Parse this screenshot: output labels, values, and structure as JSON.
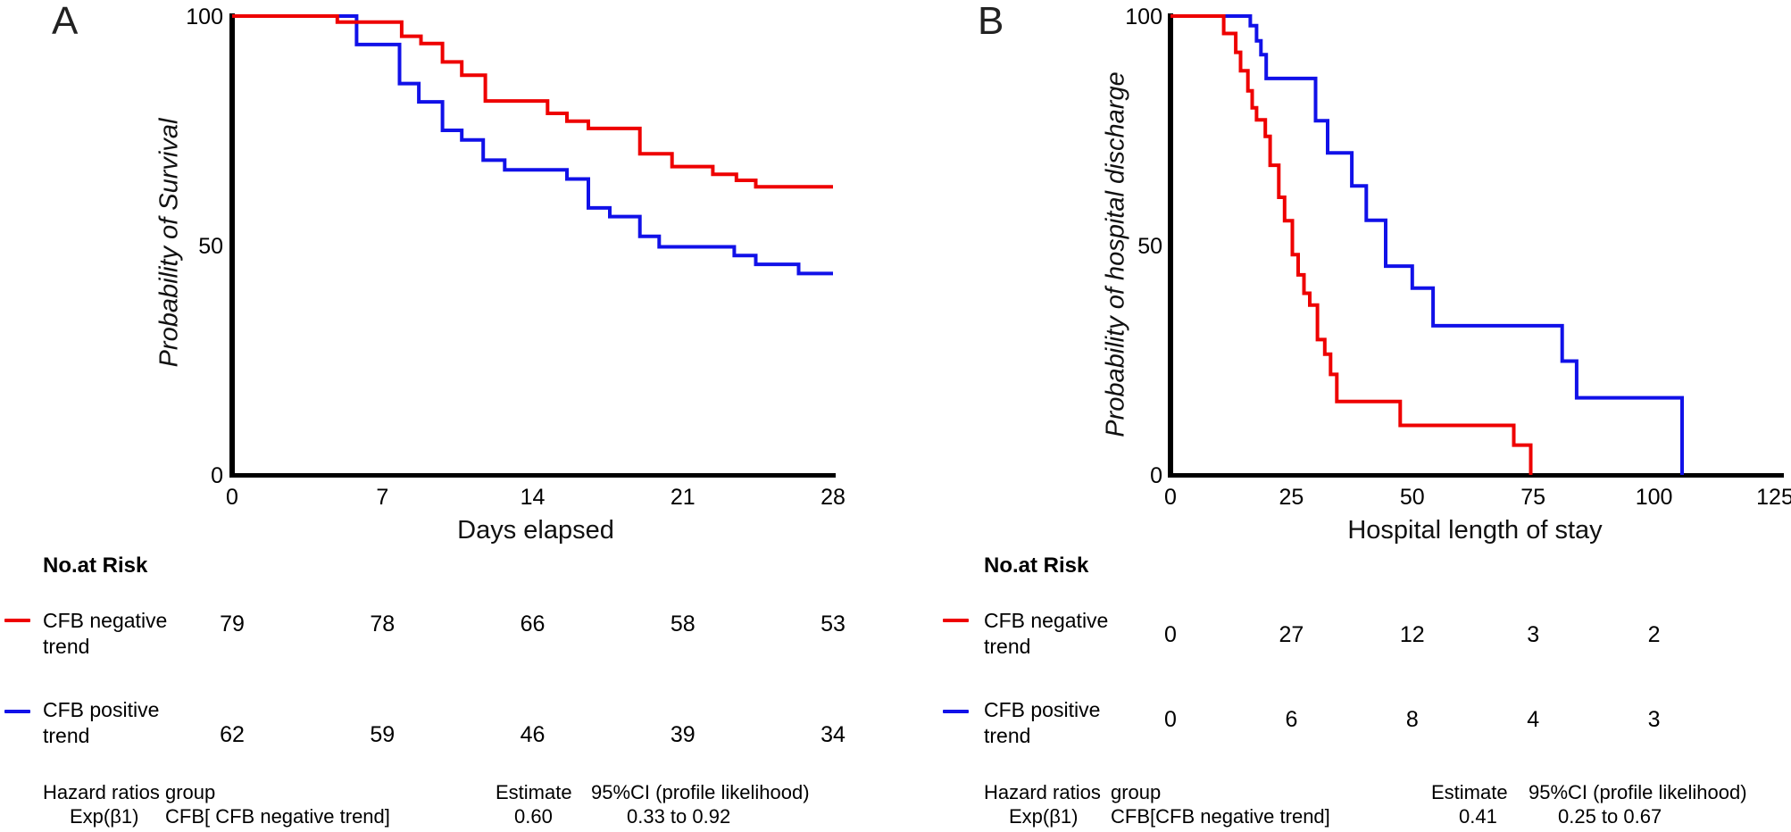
{
  "colors": {
    "red": "#ee0000",
    "blue": "#1111e8",
    "axis": "#000000"
  },
  "panel_a": {
    "letter": "A",
    "ylabel": "Probability of Survival",
    "xlabel": "Days elapsed"
  },
  "panel_b": {
    "letter": "B",
    "ylabel": "Probability of hospital discharge",
    "xlabel": "Hospital length of stay"
  },
  "risk_table_a": {
    "title": "No.at Risk",
    "rows": [
      {
        "label_line1": "CFB negative",
        "label_line2": "trend",
        "color": "red",
        "values": [
          "79",
          "78",
          "66",
          "58",
          "53"
        ]
      },
      {
        "label_line1": "CFB positive",
        "label_line2": "trend",
        "color": "blue",
        "values": [
          "62",
          "59",
          "46",
          "39",
          "34"
        ]
      }
    ]
  },
  "risk_table_b": {
    "title": "No.at Risk",
    "rows": [
      {
        "label_line1": "CFB negative",
        "label_line2": "trend",
        "color": "red",
        "values": [
          "0",
          "27",
          "12",
          "3",
          "2"
        ]
      },
      {
        "label_line1": "CFB positive",
        "label_line2": "trend",
        "color": "blue",
        "values": [
          "0",
          "6",
          "8",
          "4",
          "3"
        ]
      }
    ]
  },
  "hazard_a": {
    "header_col1": "Hazard ratios",
    "header_col2": "group",
    "header_col3": "Estimate",
    "header_col4": "95%CI (profile likelihood)",
    "value_col1": "Exp(β1)",
    "value_col2": "CFB[ CFB negative trend]",
    "value_col3": "0.60",
    "value_col4": "0.33 to 0.92"
  },
  "hazard_b": {
    "header_col1": "Hazard ratios",
    "header_col2": "group",
    "header_col3": "Estimate",
    "header_col4": "95%CI (profile likelihood)",
    "value_col1": "Exp(β1)",
    "value_col2": "CFB[CFB negative trend]",
    "value_col3": "0.41",
    "value_col4": "0.25 to 0.67"
  },
  "chart_data": [
    {
      "id": "A",
      "type": "line",
      "subtype": "kaplan-meier-step",
      "panel_label": "A",
      "title": "",
      "xlabel": "Days elapsed",
      "ylabel": "Probability of Survival",
      "xlim": [
        0,
        28
      ],
      "ylim": [
        0,
        100
      ],
      "xticks": [
        "0",
        "7",
        "14",
        "21",
        "28"
      ],
      "xtick_values": [
        0,
        7,
        14,
        21,
        28
      ],
      "yticks": [
        "0",
        "50",
        "100"
      ],
      "ytick_values": [
        0,
        50,
        100
      ],
      "grid": false,
      "legend_position": "below-as-risk-table",
      "series": [
        {
          "name": "CFB negative trend",
          "color": "#ee0000",
          "end_x": 28,
          "points": [
            [
              0,
              100
            ],
            [
              4.9,
              98.7
            ],
            [
              7.9,
              95.6
            ],
            [
              8.8,
              94.0
            ],
            [
              9.8,
              90.0
            ],
            [
              10.7,
              87.1
            ],
            [
              11.8,
              81.5
            ],
            [
              14.7,
              78.8
            ],
            [
              15.6,
              77.1
            ],
            [
              16.6,
              75.5
            ],
            [
              19.0,
              70.0
            ],
            [
              20.5,
              67.2
            ],
            [
              22.4,
              65.5
            ],
            [
              23.5,
              64.2
            ],
            [
              24.4,
              62.8
            ]
          ]
        },
        {
          "name": "CFB positive trend",
          "color": "#1111e8",
          "end_x": 28,
          "points": [
            [
              0,
              100
            ],
            [
              5.8,
              93.8
            ],
            [
              7.8,
              85.3
            ],
            [
              8.7,
              81.3
            ],
            [
              9.8,
              75.1
            ],
            [
              10.7,
              73.0
            ],
            [
              11.7,
              68.6
            ],
            [
              12.7,
              66.5
            ],
            [
              15.6,
              64.5
            ],
            [
              16.6,
              58.2
            ],
            [
              17.6,
              56.3
            ],
            [
              19.0,
              52.0
            ],
            [
              19.9,
              49.7
            ],
            [
              23.4,
              47.8
            ],
            [
              24.4,
              45.9
            ],
            [
              26.4,
              43.9
            ]
          ]
        }
      ]
    },
    {
      "id": "B",
      "type": "line",
      "subtype": "kaplan-meier-step",
      "panel_label": "B",
      "title": "",
      "xlabel": "Hospital length of stay",
      "ylabel": "Probability of hospital discharge",
      "xlim": [
        0,
        125
      ],
      "ylim": [
        0,
        100
      ],
      "xticks": [
        "0",
        "25",
        "50",
        "75",
        "100",
        "125"
      ],
      "xtick_values": [
        0,
        25,
        50,
        75,
        100,
        125
      ],
      "yticks": [
        "0",
        "50",
        "100"
      ],
      "ytick_values": [
        0,
        50,
        100
      ],
      "grid": false,
      "legend_position": "below-as-risk-table",
      "series": [
        {
          "name": "CFB negative trend",
          "color": "#ee0000",
          "end_x": 74.5,
          "points": [
            [
              0,
              100
            ],
            [
              11,
              96.2
            ],
            [
              13.5,
              92.1
            ],
            [
              14.5,
              88.1
            ],
            [
              16,
              83.7
            ],
            [
              16.9,
              80.0
            ],
            [
              17.8,
              77.4
            ],
            [
              19.6,
              73.8
            ],
            [
              20.6,
              67.5
            ],
            [
              22.4,
              60.5
            ],
            [
              23.6,
              55.4
            ],
            [
              25.2,
              48.0
            ],
            [
              26.4,
              43.6
            ],
            [
              27.6,
              39.6
            ],
            [
              28.8,
              37.0
            ],
            [
              30.4,
              29.5
            ],
            [
              31.9,
              26.3
            ],
            [
              33.1,
              21.9
            ],
            [
              34.4,
              16.0
            ],
            [
              47.5,
              10.8
            ],
            [
              71.0,
              6.5
            ],
            [
              74.5,
              0
            ]
          ]
        },
        {
          "name": "CFB positive trend",
          "color": "#1111e8",
          "end_x": 105.8,
          "points": [
            [
              0,
              100
            ],
            [
              16.5,
              97.9
            ],
            [
              17.8,
              94.6
            ],
            [
              18.7,
              91.6
            ],
            [
              19.8,
              86.4
            ],
            [
              30.0,
              77.2
            ],
            [
              32.5,
              70.2
            ],
            [
              37.5,
              63.0
            ],
            [
              40.5,
              55.5
            ],
            [
              44.5,
              45.5
            ],
            [
              50.0,
              40.7
            ],
            [
              54.3,
              32.5
            ],
            [
              81.0,
              24.8
            ],
            [
              84.0,
              16.8
            ],
            [
              105.8,
              0
            ]
          ]
        }
      ]
    }
  ]
}
